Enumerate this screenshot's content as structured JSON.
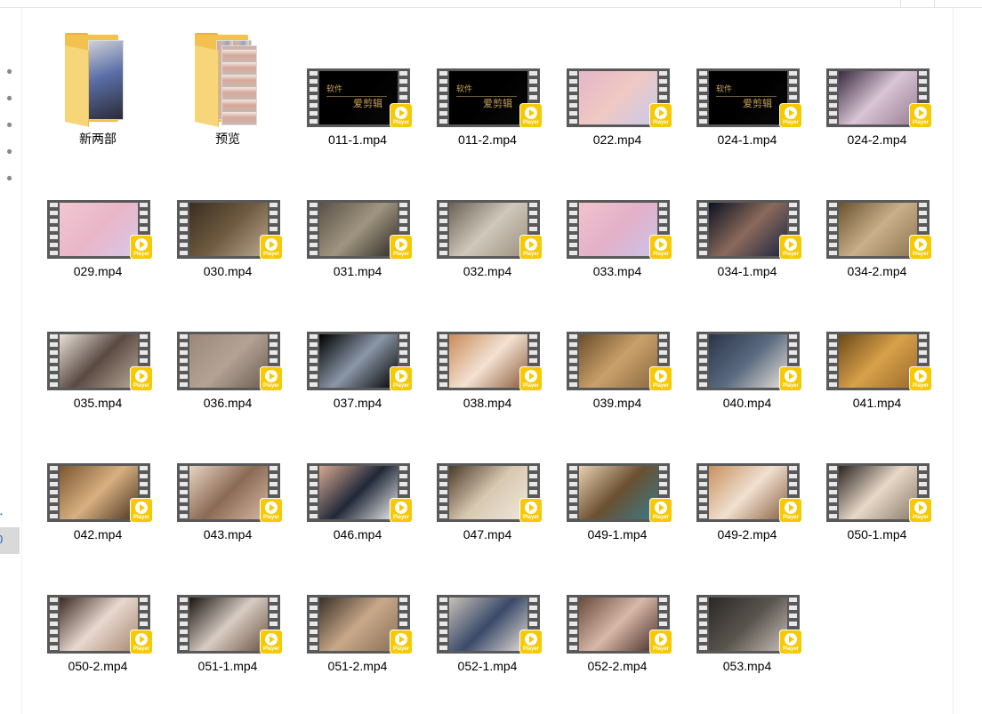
{
  "folders": [
    {
      "name": "新两部",
      "icon": "folder-icon",
      "preview": [
        "#c9c9cf",
        "#5a6fa8",
        "#2b2b35"
      ]
    },
    {
      "name": "预览",
      "icon": "folder-icon",
      "preview": [
        "#c8b8b0",
        "#d8a89a",
        "#9aa0b8"
      ]
    }
  ],
  "videos": [
    {
      "name": "011-1.mp4",
      "overlay_text": "软件",
      "overlay_text2": "爱剪辑",
      "colors": [
        "#000000",
        "#000000",
        "#0a0a0a"
      ]
    },
    {
      "name": "011-2.mp4",
      "overlay_text": "软件",
      "overlay_text2": "爱剪辑",
      "colors": [
        "#000000",
        "#000000",
        "#0a0a0a"
      ]
    },
    {
      "name": "022.mp4",
      "colors": [
        "#e4b6c8",
        "#f0c9c4",
        "#c8c9ea"
      ]
    },
    {
      "name": "024-1.mp4",
      "overlay_text": "软件",
      "overlay_text2": "爱剪辑",
      "colors": [
        "#000000",
        "#000000",
        "#0a0a0a"
      ]
    },
    {
      "name": "024-2.mp4",
      "colors": [
        "#3b2a40",
        "#d8c5d5",
        "#9a7c93"
      ]
    },
    {
      "name": "029.mp4",
      "colors": [
        "#f1c7d2",
        "#e9b6c8",
        "#d9c7e9"
      ]
    },
    {
      "name": "030.mp4",
      "colors": [
        "#3a2e22",
        "#6e5a40",
        "#b9a890"
      ]
    },
    {
      "name": "031.mp4",
      "colors": [
        "#5a5147",
        "#a09580",
        "#2e2a26"
      ]
    },
    {
      "name": "032.mp4",
      "colors": [
        "#6b6256",
        "#cfc8bb",
        "#9b8f7d"
      ]
    },
    {
      "name": "033.mp4",
      "colors": [
        "#f2c3cc",
        "#e3b0c8",
        "#ccc3ea"
      ]
    },
    {
      "name": "034-1.mp4",
      "colors": [
        "#0c1124",
        "#8a6a5a",
        "#1c2440"
      ]
    },
    {
      "name": "034-2.mp4",
      "colors": [
        "#6b5230",
        "#c9b08a",
        "#8c7450"
      ]
    },
    {
      "name": "035.mp4",
      "colors": [
        "#e8e0d8",
        "#5a4a42",
        "#b8a898"
      ]
    },
    {
      "name": "036.mp4",
      "colors": [
        "#9a8778",
        "#b4a395",
        "#6c5d52"
      ]
    },
    {
      "name": "037.mp4",
      "colors": [
        "#000000",
        "#8a97a8",
        "#000000"
      ]
    },
    {
      "name": "038.mp4",
      "colors": [
        "#c88a5a",
        "#f4e2d2",
        "#8a5a3a"
      ]
    },
    {
      "name": "039.mp4",
      "colors": [
        "#6a4e2a",
        "#c9a06a",
        "#8a6a40"
      ]
    },
    {
      "name": "040.mp4",
      "colors": [
        "#2a3448",
        "#5a6a80",
        "#e8e2d8"
      ]
    },
    {
      "name": "041.mp4",
      "colors": [
        "#6a4a1a",
        "#d8a04a",
        "#9a6a2a"
      ]
    },
    {
      "name": "042.mp4",
      "colors": [
        "#7a5530",
        "#d8b080",
        "#4a3420"
      ]
    },
    {
      "name": "043.mp4",
      "colors": [
        "#e8d4c4",
        "#8a6a54",
        "#d8b8a4"
      ]
    },
    {
      "name": "046.mp4",
      "colors": [
        "#d8a890",
        "#202838",
        "#f0f0f0"
      ]
    },
    {
      "name": "047.mp4",
      "colors": [
        "#4a3a2a",
        "#d8c8b0",
        "#f0e8dc"
      ]
    },
    {
      "name": "049-1.mp4",
      "colors": [
        "#e8d0b0",
        "#6a5030",
        "#3a7a8a"
      ]
    },
    {
      "name": "049-2.mp4",
      "colors": [
        "#c89060",
        "#f0e0d0",
        "#8a6040"
      ]
    },
    {
      "name": "050-1.mp4",
      "colors": [
        "#2a2420",
        "#e8d8c8",
        "#8a7a6a"
      ]
    },
    {
      "name": "050-2.mp4",
      "colors": [
        "#3a2a22",
        "#e8d8d0",
        "#a88870"
      ]
    },
    {
      "name": "051-1.mp4",
      "colors": [
        "#1a1410",
        "#d8ccc4",
        "#6a5240"
      ]
    },
    {
      "name": "051-2.mp4",
      "colors": [
        "#3a3028",
        "#c8a888",
        "#8a7058"
      ]
    },
    {
      "name": "052-1.mp4",
      "colors": [
        "#c8c0b8",
        "#3a4a6a",
        "#e8e0d8"
      ]
    },
    {
      "name": "052-2.mp4",
      "colors": [
        "#6a4a3a",
        "#d8b8a8",
        "#4a3028"
      ]
    },
    {
      "name": "053.mp4",
      "colors": [
        "#2a2826",
        "#5a544e",
        "#c8c0b8"
      ]
    }
  ],
  "badge": {
    "label": "Player",
    "color": "#f6c900",
    "icon": "play-icon"
  },
  "nav": {
    "pins": [
      "pin-icon",
      "pin-icon",
      "pin-icon",
      "pin-icon",
      "pin-icon"
    ],
    "selected_glyph": "0"
  }
}
